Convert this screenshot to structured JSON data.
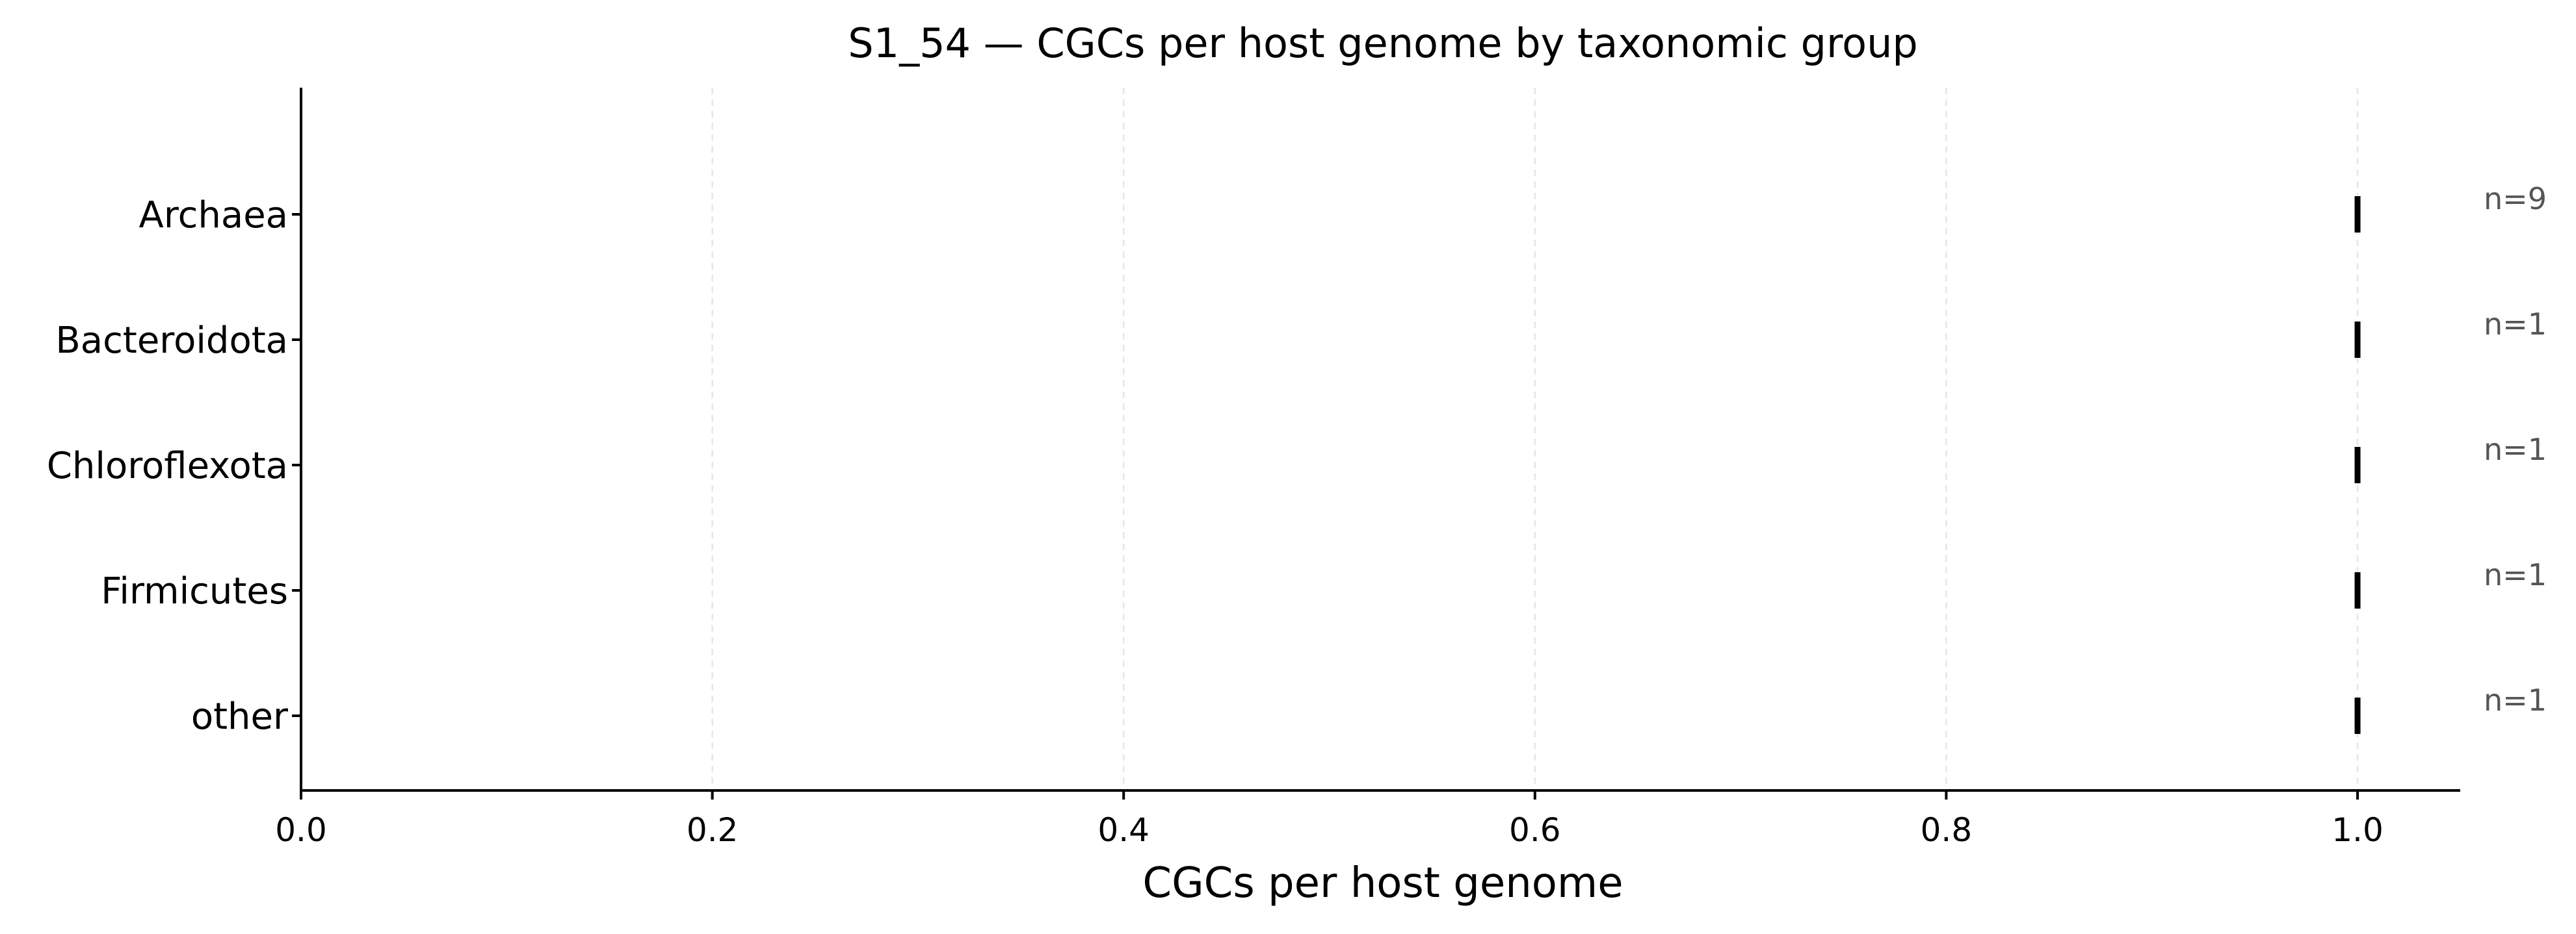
{
  "chart_data": {
    "type": "scatter",
    "title": "S1_54 — CGCs per host genome by taxonomic group",
    "xlabel": "CGCs per host genome",
    "ylabel": "",
    "xlim": [
      0,
      1.05
    ],
    "xticks": [
      0.0,
      0.2,
      0.4,
      0.6,
      0.8,
      1.0
    ],
    "xtick_labels": [
      "0.0",
      "0.2",
      "0.4",
      "0.6",
      "0.8",
      "1.0"
    ],
    "grid": "x-dashed",
    "categories": [
      "Archaea",
      "Bacteroidota",
      "Chloroflexota",
      "Firmicutes",
      "other"
    ],
    "values": [
      1.0,
      1.0,
      1.0,
      1.0,
      1.0
    ],
    "counts": [
      "n=9",
      "n=1",
      "n=1",
      "n=1",
      "n=1"
    ],
    "mark_color": "#000000",
    "count_color": "#555555"
  }
}
